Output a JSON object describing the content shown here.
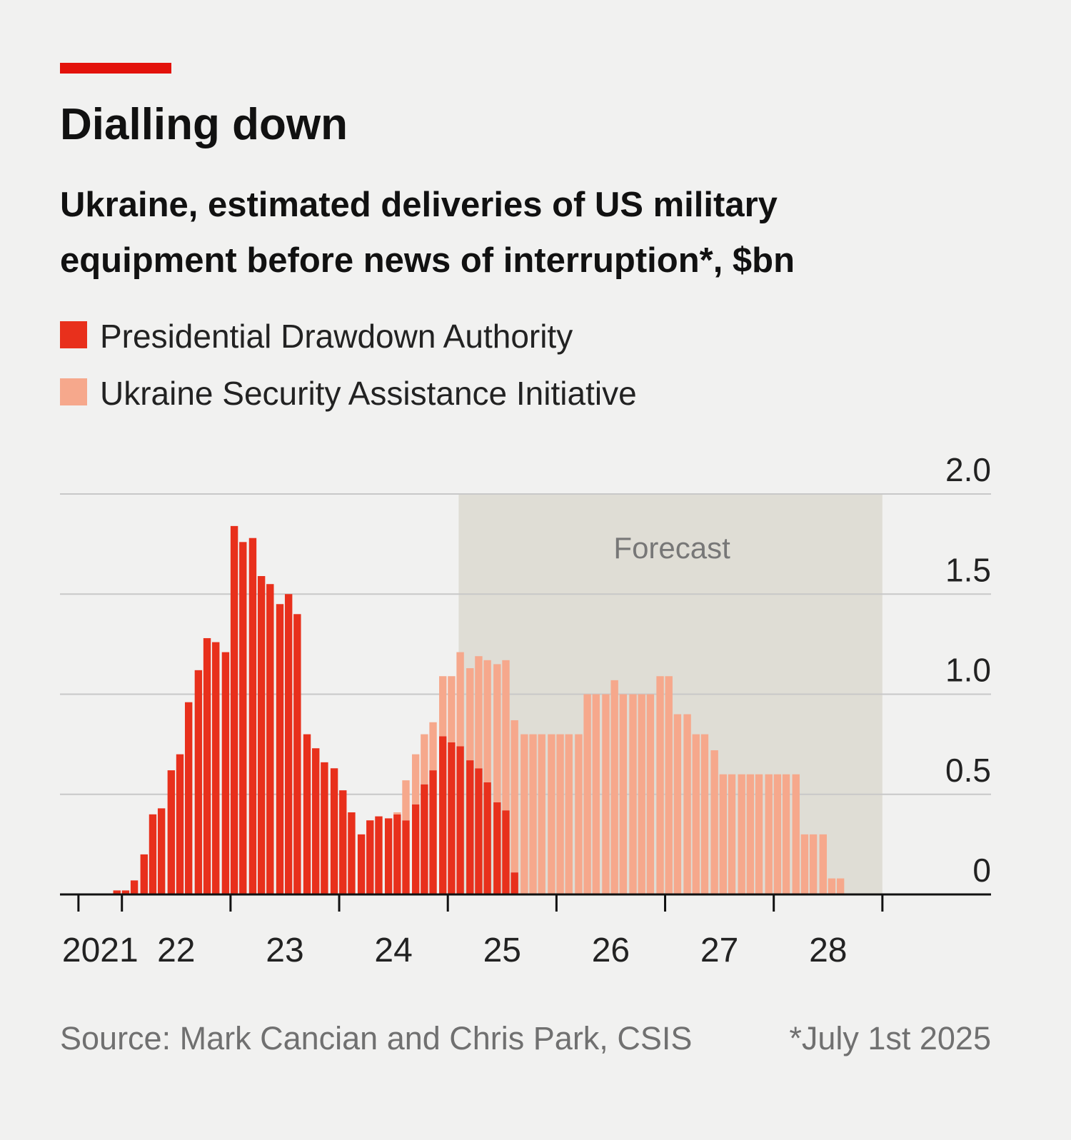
{
  "chart_data": {
    "type": "bar",
    "stacked": true,
    "title": "Dialling down",
    "subtitle": [
      "Ukraine, estimated deliveries of US military",
      "equipment before news of interruption*, $bn"
    ],
    "x": [
      2021.92,
      2022.0,
      2022.08,
      2022.17,
      2022.25,
      2022.33,
      2022.42,
      2022.5,
      2022.58,
      2022.67,
      2022.75,
      2022.83,
      2022.92,
      2023.0,
      2023.08,
      2023.17,
      2023.25,
      2023.33,
      2023.42,
      2023.5,
      2023.58,
      2023.67,
      2023.75,
      2023.83,
      2023.92,
      2024.0,
      2024.08,
      2024.17,
      2024.25,
      2024.33,
      2024.42,
      2024.5,
      2024.58,
      2024.67,
      2024.75,
      2024.83,
      2024.92,
      2025.0,
      2025.08,
      2025.17,
      2025.25,
      2025.33,
      2025.42,
      2025.5,
      2025.58,
      2025.67,
      2025.75,
      2025.83,
      2025.92,
      2026.0,
      2026.08,
      2026.17,
      2026.25,
      2026.33,
      2026.42,
      2026.5,
      2026.58,
      2026.67,
      2026.75,
      2026.83,
      2026.92,
      2027.0,
      2027.08,
      2027.17,
      2027.25,
      2027.33,
      2027.42,
      2027.5,
      2027.58,
      2027.67,
      2027.75,
      2027.83,
      2027.92,
      2028.0,
      2028.08,
      2028.17,
      2028.25,
      2028.33,
      2028.42,
      2028.5,
      2028.58
    ],
    "series": [
      {
        "name": "Presidential Drawdown Authority",
        "color": "#e8301c",
        "values": [
          0.02,
          0.02,
          0.07,
          0.2,
          0.4,
          0.43,
          0.62,
          0.7,
          0.96,
          1.12,
          1.28,
          1.26,
          1.21,
          1.84,
          1.76,
          1.78,
          1.59,
          1.55,
          1.45,
          1.5,
          1.4,
          0.8,
          0.73,
          0.66,
          0.63,
          0.52,
          0.41,
          0.3,
          0.37,
          0.39,
          0.38,
          0.4,
          0.37,
          0.45,
          0.55,
          0.62,
          0.79,
          0.76,
          0.74,
          0.67,
          0.63,
          0.56,
          0.46,
          0.42,
          0.11,
          0,
          0,
          0,
          0,
          0,
          0,
          0,
          0,
          0,
          0,
          0,
          0,
          0,
          0,
          0,
          0,
          0,
          0,
          0,
          0,
          0,
          0,
          0,
          0,
          0,
          0,
          0,
          0,
          0,
          0,
          0,
          0,
          0,
          0,
          0,
          0
        ]
      },
      {
        "name": "Ukraine Security Assistance Initiative",
        "color": "#f6a88c",
        "values": [
          0,
          0,
          0,
          0,
          0,
          0,
          0,
          0,
          0,
          0,
          0,
          0,
          0,
          0,
          0,
          0,
          0,
          0,
          0,
          0,
          0,
          0,
          0,
          0,
          0,
          0,
          0,
          0,
          0,
          0,
          0,
          0.01,
          0.2,
          0.25,
          0.25,
          0.24,
          0.3,
          0.33,
          0.47,
          0.46,
          0.56,
          0.61,
          0.69,
          0.75,
          0.76,
          0.8,
          0.8,
          0.8,
          0.8,
          0.8,
          0.8,
          0.8,
          1.0,
          1.0,
          1.0,
          1.07,
          1.0,
          1.0,
          1.0,
          1.0,
          1.09,
          1.09,
          0.9,
          0.9,
          0.8,
          0.8,
          0.72,
          0.6,
          0.6,
          0.6,
          0.6,
          0.6,
          0.6,
          0.6,
          0.6,
          0.6,
          0.3,
          0.3,
          0.3,
          0.08,
          0.08
        ]
      }
    ],
    "xlim": [
      2021.43,
      2030
    ],
    "x_tick_marks": [
      2021.6,
      2022,
      2023,
      2024,
      2025,
      2026,
      2027,
      2028,
      2029
    ],
    "xticks": [
      {
        "value": 2021.8,
        "label": "2021"
      },
      {
        "value": 2022.5,
        "label": "22"
      },
      {
        "value": 2023.5,
        "label": "23"
      },
      {
        "value": 2024.5,
        "label": "24"
      },
      {
        "value": 2025.5,
        "label": "25"
      },
      {
        "value": 2026.5,
        "label": "26"
      },
      {
        "value": 2027.5,
        "label": "27"
      },
      {
        "value": 2028.5,
        "label": "28"
      }
    ],
    "ylim": [
      0,
      2
    ],
    "yticks": [
      0,
      0.5,
      {
        "value": 1,
        "label": "1.0"
      },
      1.5,
      {
        "value": 2,
        "label": "2.0"
      }
    ],
    "grid": true,
    "forecast": {
      "label": "Forecast",
      "range": [
        2025.1,
        2029
      ]
    },
    "source": "Source: Mark Cancian and Chris Park, CSIS",
    "note": "*July 1st 2025"
  }
}
